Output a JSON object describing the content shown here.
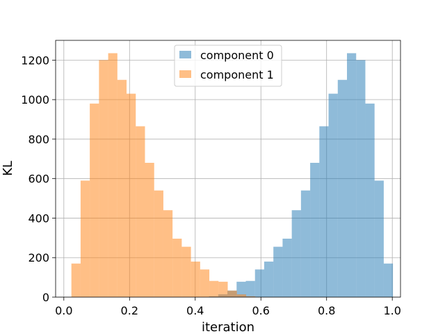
{
  "chart_data": {
    "type": "bar",
    "subtype": "overlapping-histogram",
    "title": "",
    "xlabel": "iteration",
    "ylabel": "KL",
    "xlim": [
      -0.025,
      1.025
    ],
    "ylim": [
      0,
      1300
    ],
    "xticks": [
      0.0,
      0.2,
      0.4,
      0.6,
      0.8,
      1.0
    ],
    "xtick_labels": [
      "0.0",
      "0.2",
      "0.4",
      "0.6",
      "0.8",
      "1.0"
    ],
    "yticks": [
      0,
      200,
      400,
      600,
      800,
      1000,
      1200
    ],
    "ytick_labels": [
      "0",
      "200",
      "400",
      "600",
      "800",
      "1000",
      "1200"
    ],
    "grid": true,
    "legend_position": "upper center",
    "series": [
      {
        "name": "component 0",
        "color": "#1f77b4",
        "opacity": 0.5,
        "bins": [
          0.442,
          0.47,
          0.498,
          0.526,
          0.554,
          0.582,
          0.61,
          0.638,
          0.666,
          0.694,
          0.722,
          0.75,
          0.778,
          0.806,
          0.834,
          0.862,
          0.89,
          0.918,
          0.946,
          0.974
        ],
        "values": [
          4,
          14,
          33,
          78,
          82,
          140,
          180,
          255,
          296,
          440,
          540,
          680,
          865,
          1030,
          1100,
          1235,
          1200,
          980,
          590,
          170
        ]
      },
      {
        "name": "component 1",
        "color": "#ff7f0e",
        "opacity": 0.5,
        "bins": [
          0.023,
          0.051,
          0.079,
          0.107,
          0.135,
          0.163,
          0.191,
          0.219,
          0.247,
          0.275,
          0.303,
          0.331,
          0.359,
          0.387,
          0.415,
          0.443,
          0.471,
          0.499,
          0.527,
          0.555
        ],
        "values": [
          170,
          590,
          980,
          1200,
          1235,
          1100,
          1030,
          865,
          680,
          540,
          440,
          296,
          255,
          180,
          140,
          82,
          78,
          33,
          14,
          4
        ]
      }
    ]
  }
}
